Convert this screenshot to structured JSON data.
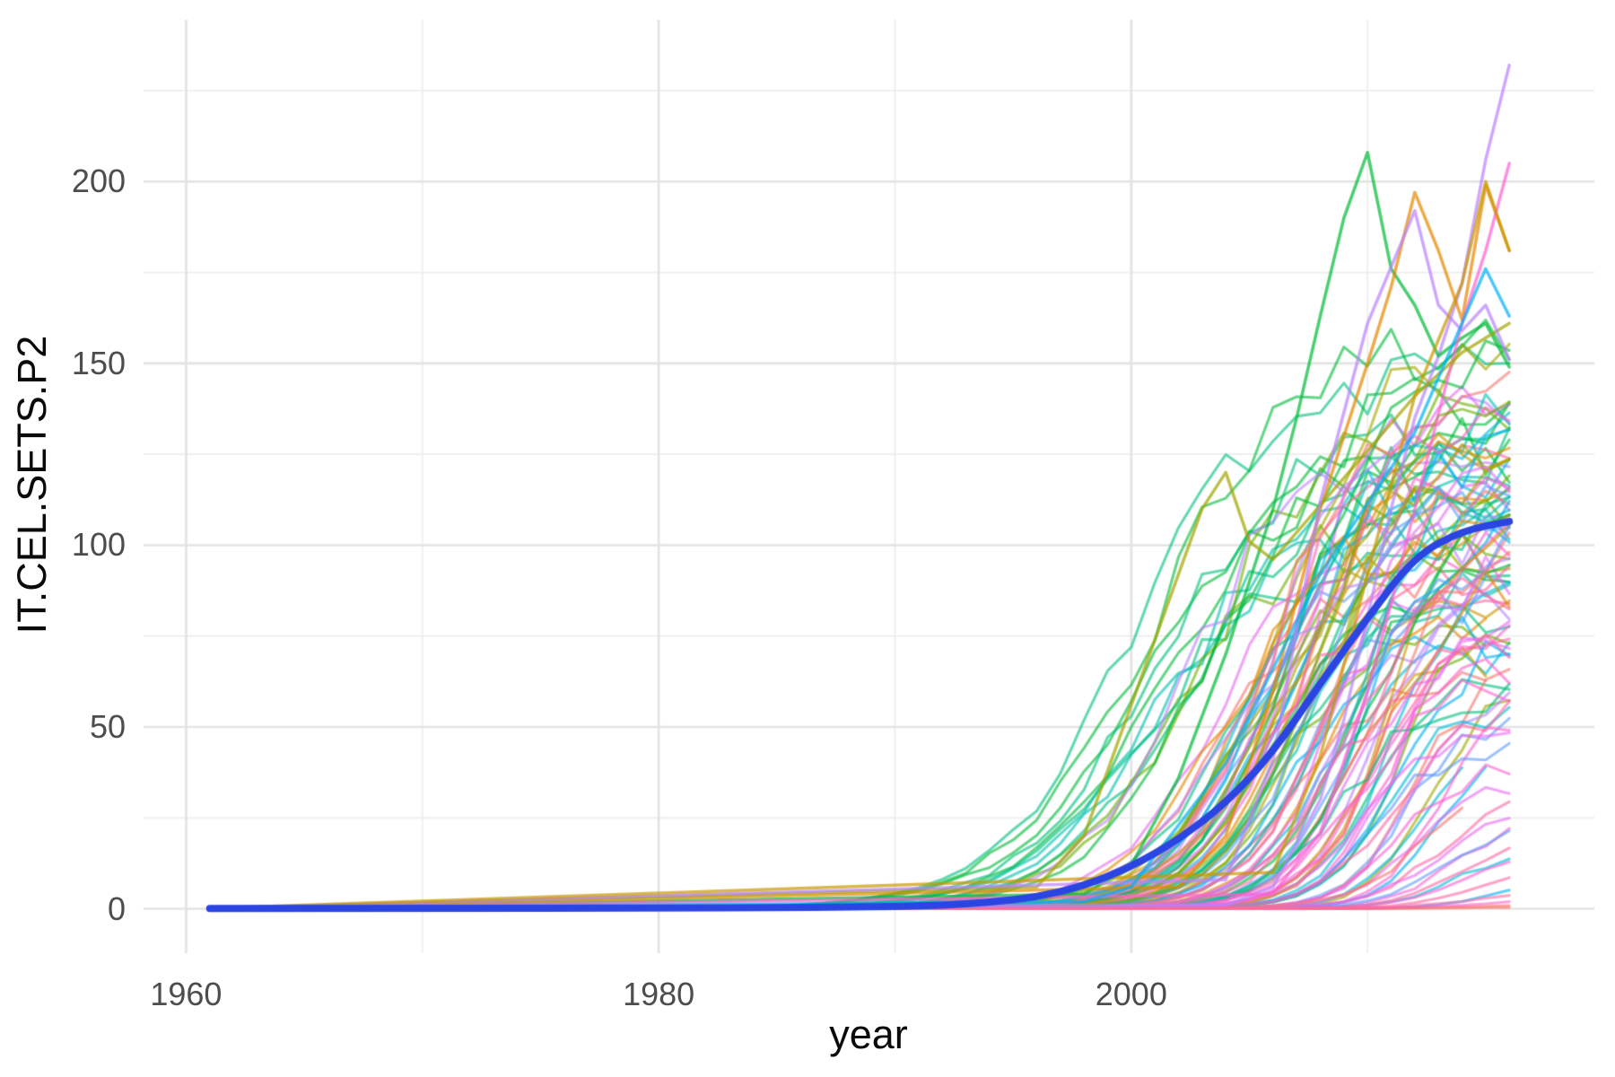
{
  "chart_data": {
    "type": "line",
    "title": "",
    "xlabel": "year",
    "ylabel": "IT.CEL.SETS.P2",
    "description": "Spaghetti plot of mobile cellular subscriptions per 100 people (IT.CEL.SETS.P2) for many countries, 1961-2016, with a thick blue overall smooth trend line.",
    "x_axis": {
      "ticks": [
        1960,
        1980,
        2000
      ],
      "minor_ticks": [
        1970,
        1990,
        2010
      ],
      "range": [
        1958.2,
        2019.6
      ]
    },
    "y_axis": {
      "ticks": [
        0,
        50,
        100,
        150,
        200
      ],
      "minor_ticks": [
        25,
        75,
        125,
        175,
        225
      ],
      "range": [
        -12.2,
        244.5
      ]
    },
    "x_data_range": [
      1961,
      2016
    ],
    "grid": {
      "major_color": "#e3e3e3",
      "minor_color": "#ededed",
      "major_width": 2.6,
      "minor_width": 1.7,
      "show": true
    },
    "legend": "none",
    "spaghetti": {
      "alpha": 0.6,
      "line_width": 3.1,
      "palette": [
        "#F8766D",
        "#E58700",
        "#C99800",
        "#A3A500",
        "#6BB100",
        "#00BA38",
        "#00BF7D",
        "#00C0AF",
        "#00BCD8",
        "#00B0F6",
        "#619CFF",
        "#B983FF",
        "#E76BF3",
        "#FD61D1",
        "#FF67A4"
      ]
    },
    "smooth_line": {
      "color": "#2B45E2",
      "width": 8,
      "points": [
        [
          1961,
          0.1
        ],
        [
          1970,
          0.1
        ],
        [
          1980,
          0.2
        ],
        [
          1985,
          0.3
        ],
        [
          1988,
          0.45
        ],
        [
          1990,
          0.65
        ],
        [
          1992,
          1.0
        ],
        [
          1994,
          1.8
        ],
        [
          1996,
          3.2
        ],
        [
          1998,
          6.3
        ],
        [
          2000,
          11.5
        ],
        [
          2002,
          19
        ],
        [
          2004,
          29
        ],
        [
          2006,
          43
        ],
        [
          2008,
          62
        ],
        [
          2010,
          80
        ],
        [
          2012,
          97
        ],
        [
          2014,
          104
        ],
        [
          2016,
          106.5
        ]
      ]
    },
    "series_model": "logistic-with-jitter",
    "series_columns": [
      "palette_index",
      "end_value",
      "midpoint_year",
      "growth_rate",
      "seed",
      "end_year_optional"
    ],
    "series": [
      [
        6,
        148,
        2000,
        0.35,
        1
      ],
      [
        5,
        122,
        2000.5,
        0.34,
        2
      ],
      [
        6,
        133,
        2001,
        0.36,
        3
      ],
      [
        7,
        117,
        2001.5,
        0.35,
        4
      ],
      [
        5,
        158,
        2001,
        0.33,
        5
      ],
      [
        4,
        111,
        2002,
        0.38,
        6
      ],
      [
        6,
        126,
        2002.5,
        0.36,
        7
      ],
      [
        5,
        142,
        2002,
        0.34,
        8
      ],
      [
        7,
        104,
        2001,
        0.4,
        9
      ],
      [
        6,
        97,
        2000.5,
        0.37,
        10
      ],
      [
        4,
        136,
        2003,
        0.38,
        11
      ],
      [
        5,
        129,
        2003,
        0.4,
        12
      ],
      [
        11,
        130,
        2002.5,
        0.4,
        114
      ],
      [
        0,
        96,
        2004,
        0.45,
        13
      ],
      [
        1,
        118,
        2005,
        0.5,
        14
      ],
      [
        2,
        88,
        2005.5,
        0.48,
        15
      ],
      [
        3,
        152,
        2006,
        0.5,
        16
      ],
      [
        4,
        75,
        2006,
        0.55,
        17,
        2015
      ],
      [
        5,
        134,
        2006.5,
        0.5,
        18
      ],
      [
        6,
        108,
        2004.5,
        0.45,
        19
      ],
      [
        7,
        92,
        2007,
        0.5,
        20
      ],
      [
        8,
        121,
        2005,
        0.52,
        21
      ],
      [
        9,
        103,
        2006,
        0.5,
        22
      ],
      [
        10,
        86,
        2007.5,
        0.55,
        23
      ],
      [
        11,
        140,
        2006,
        0.5,
        24
      ],
      [
        12,
        112,
        2004,
        0.42,
        25
      ],
      [
        13,
        98,
        2007,
        0.55,
        26
      ],
      [
        14,
        127,
        2005.5,
        0.5,
        27
      ],
      [
        0,
        143,
        2006,
        0.48,
        28
      ],
      [
        1,
        79,
        2008,
        0.6,
        29,
        2015
      ],
      [
        2,
        131,
        2007,
        0.5,
        30
      ],
      [
        3,
        101,
        2005,
        0.45,
        31
      ],
      [
        4,
        122,
        2008,
        0.55,
        32
      ],
      [
        5,
        89,
        2006,
        0.5,
        33
      ],
      [
        6,
        115,
        2007.5,
        0.52,
        34
      ],
      [
        7,
        137,
        2006.5,
        0.48,
        35
      ],
      [
        8,
        70,
        2008,
        0.6,
        36
      ],
      [
        9,
        126,
        2007,
        0.5,
        37
      ],
      [
        10,
        109,
        2005.5,
        0.45,
        38
      ],
      [
        11,
        83,
        2008.5,
        0.58,
        39
      ],
      [
        12,
        146,
        2007,
        0.5,
        40
      ],
      [
        13,
        119,
        2006,
        0.48,
        41
      ],
      [
        14,
        94,
        2008,
        0.55,
        42
      ],
      [
        0,
        66,
        2007,
        0.52,
        43,
        2015
      ],
      [
        1,
        135,
        2007.5,
        0.5,
        44
      ],
      [
        2,
        107,
        2006,
        0.45,
        45
      ],
      [
        3,
        124,
        2008,
        0.52,
        46
      ],
      [
        4,
        99,
        2005,
        0.42,
        47
      ],
      [
        5,
        155,
        2007,
        0.5,
        48
      ],
      [
        6,
        81,
        2006.5,
        0.55,
        49
      ],
      [
        7,
        113,
        2008.5,
        0.55,
        50
      ],
      [
        8,
        132,
        2006,
        0.46,
        51
      ],
      [
        9,
        76,
        2007,
        0.58,
        52
      ],
      [
        10,
        120,
        2008,
        0.5,
        53
      ],
      [
        11,
        102,
        2004.5,
        0.42,
        54
      ],
      [
        12,
        93,
        2008,
        0.56,
        55
      ],
      [
        13,
        139,
        2007.5,
        0.5,
        56
      ],
      [
        14,
        85,
        2005.5,
        0.48,
        57
      ],
      [
        0,
        116,
        2008.5,
        0.55,
        58
      ],
      [
        1,
        105,
        2004,
        0.44,
        59
      ],
      [
        2,
        71,
        2009,
        0.6,
        60,
        2015
      ],
      [
        3,
        128,
        2007,
        0.5,
        61
      ],
      [
        4,
        145,
        2008,
        0.52,
        62
      ],
      [
        5,
        95,
        2009,
        0.6,
        63
      ],
      [
        6,
        62,
        2010,
        0.7,
        64
      ],
      [
        7,
        118,
        2009.5,
        0.65,
        65
      ],
      [
        8,
        87,
        2011,
        0.7,
        66
      ],
      [
        9,
        110,
        2010,
        0.6,
        67
      ],
      [
        10,
        53,
        2011.5,
        0.75,
        68
      ],
      [
        11,
        98,
        2010.5,
        0.65,
        69
      ],
      [
        12,
        125,
        2009,
        0.6,
        70
      ],
      [
        13,
        78,
        2011,
        0.7,
        71
      ],
      [
        14,
        104,
        2010,
        0.62,
        72
      ],
      [
        0,
        68,
        2012,
        0.75,
        73
      ],
      [
        1,
        91,
        2010.5,
        0.65,
        74
      ],
      [
        2,
        114,
        2011,
        0.68,
        75
      ],
      [
        3,
        59,
        2012.5,
        0.8,
        76
      ],
      [
        4,
        83,
        2011.5,
        0.7,
        77
      ],
      [
        5,
        107,
        2010,
        0.6,
        78
      ],
      [
        8,
        47,
        2012,
        0.78,
        79,
        2014
      ],
      [
        9,
        72,
        2011,
        0.7,
        80
      ],
      [
        10,
        99,
        2009.5,
        0.6,
        81
      ],
      [
        11,
        64,
        2012,
        0.75,
        82
      ],
      [
        12,
        88,
        2011.5,
        0.68,
        83
      ],
      [
        13,
        56,
        2013,
        0.8,
        84
      ],
      [
        14,
        80,
        2010.5,
        0.62,
        85
      ],
      [
        0,
        102,
        2011,
        0.66,
        86
      ],
      [
        9,
        44,
        2013,
        0.8,
        87,
        2015
      ],
      [
        6,
        60,
        2009,
        0.55,
        102
      ],
      [
        12,
        74,
        2009.5,
        0.6,
        103
      ],
      [
        13,
        67,
        2010,
        0.62,
        104
      ],
      [
        14,
        90,
        2009,
        0.58,
        105
      ],
      [
        10,
        47,
        2010.5,
        0.65,
        106
      ],
      [
        8,
        58,
        2011,
        0.68,
        107
      ],
      [
        13,
        41,
        2011.5,
        0.7,
        108
      ],
      [
        12,
        51,
        2010,
        0.6,
        109
      ],
      [
        14,
        73,
        2008.5,
        0.55,
        110
      ],
      [
        13,
        62,
        2009.5,
        0.6,
        111
      ],
      [
        12,
        36,
        2012,
        0.7,
        112
      ],
      [
        14,
        55,
        2011,
        0.65,
        113
      ],
      [
        14,
        32,
        2013,
        0.7,
        88
      ],
      [
        13,
        24,
        2013.5,
        0.75,
        89
      ],
      [
        9,
        7,
        2015,
        0.8,
        90
      ],
      [
        14,
        12,
        2014.5,
        0.75,
        91
      ],
      [
        12,
        29,
        2013,
        0.65,
        92
      ],
      [
        8,
        18,
        2014,
        0.7,
        93
      ],
      [
        0,
        38,
        2012.5,
        0.6,
        94,
        2014
      ],
      [
        13,
        15,
        2014,
        0.7,
        95
      ],
      [
        10,
        26,
        2013.5,
        0.68,
        96
      ],
      [
        14,
        21,
        2014,
        0.72,
        97
      ],
      [
        0,
        1.5,
        2015,
        0.5,
        98
      ],
      [
        13,
        3,
        2015,
        0.6,
        99
      ],
      [
        0,
        0.6,
        2015,
        0.5,
        100
      ],
      [
        14,
        5,
        2014.5,
        0.6,
        101
      ]
    ],
    "feature_series": [
      {
        "palette_index": 11,
        "points": [
          [
            2004,
            1
          ],
          [
            2006,
            6
          ],
          [
            2008,
            30
          ],
          [
            2009,
            52
          ],
          [
            2010,
            80
          ],
          [
            2011,
            110
          ],
          [
            2012,
            135
          ],
          [
            2013,
            152
          ],
          [
            2014,
            172
          ],
          [
            2015,
            206
          ],
          [
            2016,
            232
          ]
        ]
      },
      {
        "palette_index": 5,
        "points": [
          [
            1998,
            4
          ],
          [
            2000,
            12
          ],
          [
            2002,
            36
          ],
          [
            2004,
            70
          ],
          [
            2006,
            110
          ],
          [
            2007,
            135
          ],
          [
            2008,
            163
          ],
          [
            2009,
            190
          ],
          [
            2010,
            208
          ],
          [
            2011,
            176
          ],
          [
            2012,
            166
          ],
          [
            2013,
            152
          ],
          [
            2014,
            157
          ],
          [
            2015,
            161
          ],
          [
            2016,
            149
          ]
        ]
      },
      {
        "palette_index": 1,
        "points": [
          [
            2002,
            6
          ],
          [
            2004,
            20
          ],
          [
            2006,
            60
          ],
          [
            2008,
            110
          ],
          [
            2010,
            150
          ],
          [
            2011,
            171
          ],
          [
            2012,
            197
          ],
          [
            2013,
            181
          ],
          [
            2014,
            162
          ],
          [
            2015,
            199
          ],
          [
            2016,
            181
          ]
        ]
      },
      {
        "palette_index": 13,
        "points": [
          [
            2006,
            4
          ],
          [
            2008,
            21
          ],
          [
            2010,
            60
          ],
          [
            2011,
            84
          ],
          [
            2012,
            110
          ],
          [
            2013,
            136
          ],
          [
            2014,
            161
          ],
          [
            2015,
            181
          ],
          [
            2016,
            205
          ]
        ]
      },
      {
        "palette_index": 3,
        "points": [
          [
            1996,
            6
          ],
          [
            1998,
            20
          ],
          [
            2000,
            56
          ],
          [
            2002,
            92
          ],
          [
            2003,
            110
          ],
          [
            2004,
            120
          ],
          [
            2005,
            101
          ],
          [
            2006,
            96
          ],
          [
            2008,
            111
          ],
          [
            2010,
            126
          ],
          [
            2012,
            141
          ],
          [
            2014,
            153
          ],
          [
            2016,
            161
          ]
        ]
      },
      {
        "palette_index": 11,
        "points": [
          [
            2004,
            8
          ],
          [
            2006,
            41
          ],
          [
            2008,
            112
          ],
          [
            2010,
            161
          ],
          [
            2012,
            192
          ],
          [
            2013,
            166
          ],
          [
            2014,
            159
          ],
          [
            2015,
            166
          ],
          [
            2016,
            151
          ]
        ]
      },
      {
        "palette_index": 2,
        "points": [
          [
            2006,
            10
          ],
          [
            2008,
            42
          ],
          [
            2010,
            92
          ],
          [
            2012,
            141
          ],
          [
            2014,
            172
          ],
          [
            2015,
            200
          ],
          [
            2016,
            181
          ]
        ]
      },
      {
        "palette_index": 9,
        "points": [
          [
            1998,
            2
          ],
          [
            2000,
            6
          ],
          [
            2004,
            40
          ],
          [
            2008,
            92
          ],
          [
            2012,
            131
          ],
          [
            2014,
            161
          ],
          [
            2015,
            176
          ],
          [
            2016,
            163
          ]
        ]
      }
    ],
    "text_colors": {
      "tick_label": "#4d4d4d",
      "axis_title": "#0a0a0a"
    }
  }
}
